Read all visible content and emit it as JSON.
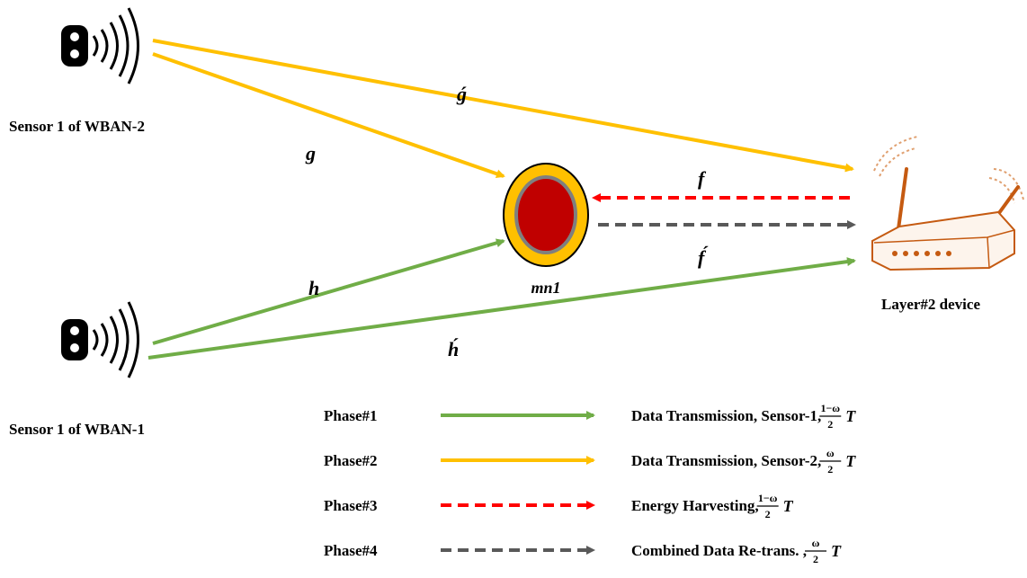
{
  "nodes": {
    "sensor_top": {
      "label": "Sensor 1 of WBAN-2"
    },
    "sensor_bottom": {
      "label": "Sensor 1 of WBAN-1"
    },
    "relay": {
      "label": "mn1"
    },
    "device": {
      "label": "Layer#2 device"
    }
  },
  "channels": {
    "g_prime": "ǵ",
    "g": "g",
    "f": "f",
    "f_prime": "f́",
    "h": "h",
    "h_prime": "h́"
  },
  "legend": [
    {
      "phase": "Phase#1",
      "desc": "Data Transmission, Sensor-1, ",
      "num": "1−ω",
      "den": "2",
      "t": "T",
      "color": "#70ad47",
      "style": "solid"
    },
    {
      "phase": "Phase#2",
      "desc": "Data Transmission, Sensor-2, ",
      "num": "ω",
      "den": "2",
      "t": "T",
      "color": "#ffc000",
      "style": "solid"
    },
    {
      "phase": "Phase#3",
      "desc": "Energy Harvesting, ",
      "num": "1−ω",
      "den": "2",
      "t": "T",
      "color": "#ff0000",
      "style": "dashed"
    },
    {
      "phase": "Phase#4",
      "desc": "Combined Data Re-trans. , ",
      "num": "ω",
      "den": "2",
      "t": "T",
      "color": "#595959",
      "style": "dashed"
    }
  ],
  "colors": {
    "green": "#70ad47",
    "yellow": "#ffc000",
    "red": "#ff0000",
    "gray": "#595959",
    "relay_outer": "#ffc000",
    "relay_inner": "#c00000",
    "relay_ring": "#7f7f7f",
    "router": "#c55a11"
  }
}
